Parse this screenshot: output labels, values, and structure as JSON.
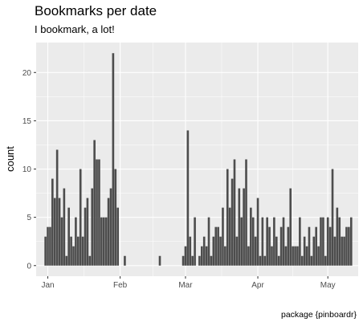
{
  "header": {
    "title": "Bookmarks per date",
    "subtitle": "I bookmark, a lot!"
  },
  "footer": {
    "caption": "package {pinboardr}"
  },
  "colors": {
    "panel": "#ebebeb",
    "grid_major": "#ffffff",
    "bar_fill": "#4d4d4d"
  },
  "chart_data": {
    "type": "bar",
    "title": "Bookmarks per date",
    "subtitle": "I bookmark, a lot!",
    "xlabel": "",
    "ylabel": "count",
    "caption": "package {pinboardr}",
    "x_type": "date",
    "xlim": [
      "2020-12-27",
      "2021-05-14"
    ],
    "ylim": [
      -1.1,
      23.1
    ],
    "x_ticks": [
      {
        "date": "2021-01-01",
        "label": "Jan"
      },
      {
        "date": "2021-02-01",
        "label": "Feb"
      },
      {
        "date": "2021-03-01",
        "label": "Mar"
      },
      {
        "date": "2021-04-01",
        "label": "Apr"
      },
      {
        "date": "2021-05-01",
        "label": "May"
      }
    ],
    "y_ticks": [
      0,
      5,
      10,
      15,
      20
    ],
    "grid": true,
    "legend": "none",
    "series": [
      {
        "x": [
          "2020-12-31",
          "2021-01-01",
          "2021-01-02",
          "2021-01-03",
          "2021-01-04",
          "2021-01-05",
          "2021-01-06",
          "2021-01-07",
          "2021-01-08",
          "2021-01-09",
          "2021-01-10",
          "2021-01-11",
          "2021-01-12",
          "2021-01-13",
          "2021-01-14",
          "2021-01-15",
          "2021-01-16",
          "2021-01-17",
          "2021-01-18",
          "2021-01-19",
          "2021-01-20",
          "2021-01-21",
          "2021-01-22",
          "2021-01-23",
          "2021-01-24",
          "2021-01-25",
          "2021-01-26",
          "2021-01-27",
          "2021-01-28",
          "2021-01-29",
          "2021-01-30",
          "2021-01-31",
          "2021-02-03",
          "2021-02-18",
          "2021-02-28",
          "2021-03-01",
          "2021-03-02",
          "2021-03-03",
          "2021-03-04",
          "2021-03-05",
          "2021-03-07",
          "2021-03-08",
          "2021-03-09",
          "2021-03-10",
          "2021-03-11",
          "2021-03-12",
          "2021-03-13",
          "2021-03-14",
          "2021-03-15",
          "2021-03-16",
          "2021-03-17",
          "2021-03-18",
          "2021-03-19",
          "2021-03-20",
          "2021-03-21",
          "2021-03-22",
          "2021-03-23",
          "2021-03-24",
          "2021-03-25",
          "2021-03-26",
          "2021-03-27",
          "2021-03-28",
          "2021-03-29",
          "2021-03-30",
          "2021-03-31",
          "2021-04-01",
          "2021-04-02",
          "2021-04-03",
          "2021-04-04",
          "2021-04-05",
          "2021-04-06",
          "2021-04-07",
          "2021-04-08",
          "2021-04-09",
          "2021-04-10",
          "2021-04-11",
          "2021-04-12",
          "2021-04-13",
          "2021-04-14",
          "2021-04-15",
          "2021-04-16",
          "2021-04-17",
          "2021-04-18",
          "2021-04-19",
          "2021-04-20",
          "2021-04-21",
          "2021-04-22",
          "2021-04-23",
          "2021-04-24",
          "2021-04-25",
          "2021-04-26",
          "2021-04-27",
          "2021-04-28",
          "2021-04-29",
          "2021-04-30",
          "2021-05-01",
          "2021-05-02",
          "2021-05-03",
          "2021-05-04",
          "2021-05-05",
          "2021-05-06",
          "2021-05-07",
          "2021-05-08",
          "2021-05-09",
          "2021-05-10",
          "2021-05-11"
        ],
        "values": [
          3,
          4,
          4,
          9,
          7,
          12,
          7,
          5,
          8,
          1,
          6,
          3,
          2,
          5,
          3,
          10,
          3,
          6,
          7,
          1,
          8,
          13,
          11,
          11,
          5,
          5,
          5,
          7,
          8,
          22,
          10,
          6,
          1,
          1,
          1,
          2,
          14,
          3,
          1,
          5,
          1,
          2,
          3,
          2,
          5,
          1,
          3,
          4,
          4,
          3,
          6,
          2,
          10,
          6,
          9,
          11,
          3,
          8,
          5,
          8,
          11,
          2,
          6,
          5,
          3,
          7,
          1,
          5,
          1,
          5,
          4,
          2,
          5,
          3,
          1,
          4,
          5,
          2,
          4,
          8,
          2,
          2,
          2,
          5,
          1,
          3,
          2,
          4,
          1,
          3,
          4,
          2,
          5,
          5,
          1,
          5,
          4,
          10,
          3,
          6,
          5,
          3,
          3,
          4,
          4,
          5
        ]
      }
    ]
  }
}
